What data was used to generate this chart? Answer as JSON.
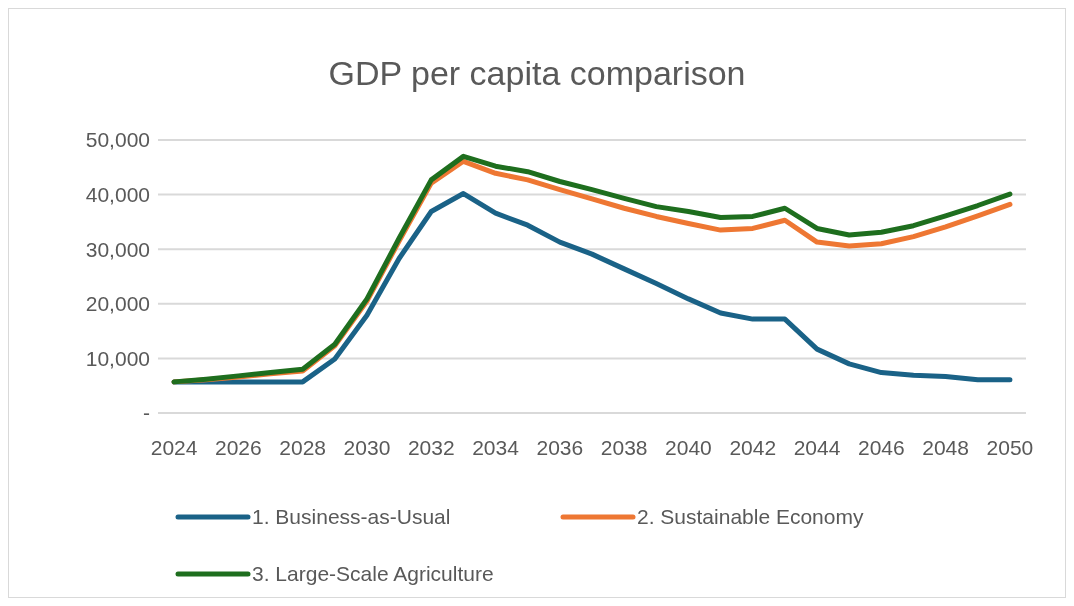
{
  "chart_data": {
    "type": "line",
    "title": "GDP per capita comparison",
    "x": [
      2024,
      2025,
      2026,
      2027,
      2028,
      2029,
      2030,
      2031,
      2032,
      2033,
      2034,
      2035,
      2036,
      2037,
      2038,
      2039,
      2040,
      2041,
      2042,
      2043,
      2044,
      2045,
      2046,
      2047,
      2048,
      2049,
      2050
    ],
    "xlim": [
      2023.5,
      2050.5
    ],
    "xticks": [
      2024,
      2026,
      2028,
      2030,
      2032,
      2034,
      2036,
      2038,
      2040,
      2042,
      2044,
      2046,
      2048,
      2050
    ],
    "ylim": [
      0,
      50000
    ],
    "yticks": [
      {
        "value": 0,
        "label": "-"
      },
      {
        "value": 10000,
        "label": "10,000"
      },
      {
        "value": 20000,
        "label": "20,000"
      },
      {
        "value": 30000,
        "label": "30,000"
      },
      {
        "value": 40000,
        "label": "40,000"
      },
      {
        "value": 50000,
        "label": "50,000"
      }
    ],
    "grid": "y",
    "legend": "bottom",
    "marker": "none",
    "line_style": "solid",
    "series": [
      {
        "name": "1. Business-as-Usual",
        "color": "#1a6287",
        "values": [
          5700,
          5700,
          5700,
          5700,
          5700,
          9900,
          17900,
          28300,
          36900,
          40200,
          36600,
          34400,
          31300,
          29100,
          26400,
          23700,
          20900,
          18300,
          17200,
          17200,
          11700,
          9000,
          7400,
          6900,
          6700,
          6100,
          6100
        ]
      },
      {
        "name": "2. Sustainable Economy",
        "color": "#ee7733",
        "values": [
          5700,
          6100,
          6600,
          7200,
          7700,
          12300,
          20500,
          31500,
          42100,
          46100,
          43900,
          42700,
          40900,
          39200,
          37500,
          36000,
          34700,
          33500,
          33800,
          35300,
          31300,
          30600,
          31000,
          32300,
          34100,
          36100,
          38200
        ]
      },
      {
        "name": "3. Large-Scale Agriculture",
        "color": "#1e6e1e",
        "values": [
          5700,
          6200,
          6800,
          7400,
          8000,
          12600,
          20900,
          32000,
          42700,
          47000,
          45200,
          44200,
          42400,
          40900,
          39300,
          37800,
          36900,
          35800,
          36000,
          37500,
          33800,
          32600,
          33100,
          34300,
          36100,
          38000,
          40100
        ]
      }
    ]
  }
}
